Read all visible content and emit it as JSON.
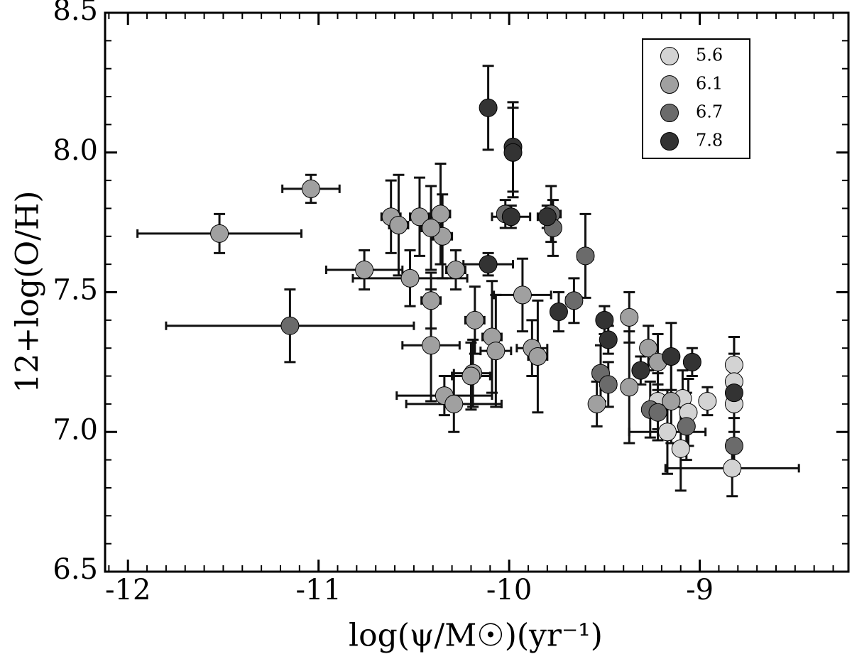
{
  "chart_data": {
    "type": "scatter",
    "xlabel": "log(ψ/M☉)(yr⁻¹)",
    "ylabel": "12+log(O/H)",
    "xlim": [
      -12.12,
      -8.22
    ],
    "ylim": [
      6.5,
      8.5
    ],
    "xticks": [
      -12,
      -11,
      -10,
      -9
    ],
    "yticks": [
      6.5,
      {
        "value": 7,
        "label": "7.0"
      },
      7.5,
      {
        "value": 8,
        "label": "8.0"
      },
      8.5
    ],
    "xminorticks": [
      -12.1,
      -11.9,
      -11.8,
      -11.7,
      -11.6,
      -11.5,
      -11.4,
      -11.3,
      -11.2,
      -11.1,
      -10.9,
      -10.8,
      -10.7,
      -10.6,
      -10.5,
      -10.4,
      -10.3,
      -10.2,
      -10.1,
      -9.9,
      -9.8,
      -9.7,
      -9.6,
      -9.5,
      -9.4,
      -9.3,
      -9.2,
      -9.1,
      -8.9,
      -8.8,
      -8.7,
      -8.6,
      -8.5,
      -8.4,
      -8.3
    ],
    "yminorticks": [
      6.6,
      6.7,
      6.8,
      6.9,
      7.1,
      7.2,
      7.3,
      7.4,
      7.6,
      7.7,
      7.8,
      7.9,
      8.1,
      8.2,
      8.3,
      8.4
    ],
    "grid": false,
    "legend": "upper right",
    "series": [
      {
        "name": "5.6",
        "color": "#d3d3d3",
        "x": [
          -9.17,
          -9.1,
          -9.09,
          -9.22,
          -8.96,
          -8.82,
          -8.82,
          -8.82,
          -8.83,
          -9.06
        ],
        "values": [
          7.0,
          6.94,
          7.12,
          7.11,
          7.11,
          7.24,
          7.18,
          7.1,
          6.87,
          7.07
        ],
        "xerr": [
          0.2,
          0.03,
          0.03,
          0.03,
          0.03,
          0.03,
          0.03,
          0.03,
          0.35,
          0.03
        ],
        "yerr": [
          0.15,
          0.15,
          0.1,
          0.1,
          0.05,
          0.1,
          0.1,
          0.1,
          0.1,
          0.12
        ]
      },
      {
        "name": "6.1",
        "color": "#a0a0a0",
        "x": [
          -11.52,
          -11.04,
          -10.76,
          -10.62,
          -10.58,
          -10.47,
          -10.36,
          -10.35,
          -10.41,
          -10.52,
          -10.28,
          -10.41,
          -10.41,
          -10.18,
          -10.09,
          -10.07,
          -10.19,
          -10.2,
          -10.34,
          -10.29,
          -9.93,
          -9.88,
          -9.85,
          -9.54,
          -9.37,
          -9.37,
          -9.27,
          -9.22,
          -9.15
        ],
        "values": [
          7.71,
          7.87,
          7.58,
          7.77,
          7.74,
          7.77,
          7.78,
          7.7,
          7.73,
          7.55,
          7.58,
          7.47,
          7.31,
          7.4,
          7.34,
          7.29,
          7.21,
          7.2,
          7.13,
          7.1,
          7.49,
          7.3,
          7.27,
          7.1,
          7.41,
          7.16,
          7.3,
          7.25,
          7.11
        ],
        "xerr": [
          0.43,
          0.15,
          0.2,
          0.05,
          0.05,
          0.05,
          0.05,
          0.05,
          0.05,
          0.3,
          0.05,
          0.05,
          0.15,
          0.05,
          0.05,
          0.08,
          0.1,
          0.1,
          0.25,
          0.25,
          0.15,
          0.08,
          0.05,
          0.03,
          0.03,
          0.03,
          0.03,
          0.03,
          0.05
        ],
        "yerr": [
          0.07,
          0.05,
          0.07,
          0.13,
          0.18,
          0.14,
          0.18,
          0.15,
          0.15,
          0.1,
          0.07,
          0.1,
          0.2,
          0.12,
          0.2,
          0.2,
          0.12,
          0.12,
          0.07,
          0.1,
          0.13,
          0.1,
          0.2,
          0.08,
          0.09,
          0.2,
          0.08,
          0.1,
          0.15
        ]
      },
      {
        "name": "6.7",
        "color": "#6b6b6b",
        "x": [
          -11.15,
          -10.02,
          -9.78,
          -9.77,
          -9.6,
          -9.66,
          -9.52,
          -9.48,
          -9.26,
          -9.22,
          -9.07,
          -8.82
        ],
        "values": [
          7.38,
          7.78,
          7.78,
          7.73,
          7.63,
          7.47,
          7.21,
          7.17,
          7.08,
          7.07,
          7.02,
          6.95
        ],
        "xerr": [
          0.65,
          0.03,
          0.05,
          0.03,
          0.04,
          0.04,
          0.04,
          0.04,
          0.03,
          0.03,
          0.03,
          0.03
        ],
        "yerr": [
          0.13,
          0.05,
          0.1,
          0.1,
          0.15,
          0.08,
          0.1,
          0.08,
          0.1,
          0.1,
          0.12,
          0.1
        ]
      },
      {
        "name": "7.8",
        "color": "#333333",
        "x": [
          -10.11,
          -9.98,
          -9.98,
          -9.99,
          -9.8,
          -10.11,
          -9.74,
          -9.5,
          -9.48,
          -9.31,
          -9.15,
          -9.04,
          -8.82
        ],
        "values": [
          8.16,
          8.02,
          8.0,
          7.77,
          7.77,
          7.6,
          7.43,
          7.4,
          7.33,
          7.22,
          7.27,
          7.25,
          7.14
        ],
        "xerr": [
          0.02,
          0.03,
          0.03,
          0.1,
          0.05,
          0.13,
          0.03,
          0.03,
          0.03,
          0.03,
          0.03,
          0.03,
          0.03
        ],
        "yerr": [
          0.15,
          0.16,
          0.16,
          0.04,
          0.04,
          0.04,
          0.07,
          0.05,
          0.05,
          0.05,
          0.12,
          0.05,
          0.2
        ]
      }
    ]
  }
}
